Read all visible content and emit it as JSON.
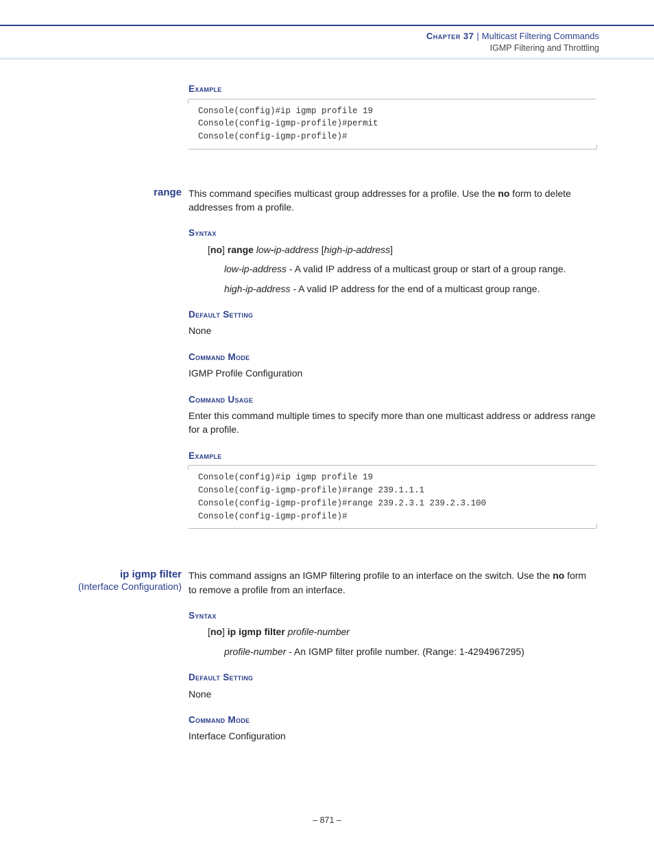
{
  "colors": {
    "accent": "#2a3e8a",
    "rule": "#b8b8b8",
    "header_bar": "#dbeaf5",
    "text": "#222222",
    "code_text": "#333333"
  },
  "typography": {
    "body_font": "Verdana",
    "body_size_pt": 10.5,
    "code_font": "Courier New",
    "code_size_pt": 9.5
  },
  "header": {
    "chapter_label": "Chapter 37",
    "pipe": "|",
    "section": "Multicast Filtering Commands",
    "subsection": "IGMP Filtering and Throttling"
  },
  "section1": {
    "example_head": "Example",
    "example_code": "Console(config)#ip igmp profile 19\nConsole(config-igmp-profile)#permit\nConsole(config-igmp-profile)#"
  },
  "range": {
    "name": "range",
    "desc_pre": "This command specifies multicast group addresses for a profile. Use the ",
    "desc_bold": "no",
    "desc_post": " form to delete addresses from a profile.",
    "syntax_head": "Syntax",
    "syntax_open": "[",
    "syntax_no": "no",
    "syntax_close_space": "] ",
    "syntax_cmd": "range",
    "syntax_space": " ",
    "syntax_low": "low",
    "syntax_dash": "-",
    "syntax_lowrest": "ip-address",
    "syntax_space2": " [",
    "syntax_high": "high-ip-address",
    "syntax_close2": "]",
    "param_low_name": "low-ip-address",
    "param_low_desc": " - A valid IP address of a multicast group or start of a group range.",
    "param_high_name": "high-ip-address",
    "param_high_desc": " - A valid IP address for the end of a multicast group range.",
    "default_head": "Default Setting",
    "default_val": "None",
    "mode_head": "Command Mode",
    "mode_val": "IGMP Profile Configuration",
    "usage_head": "Command Usage",
    "usage_val": "Enter this command multiple times to specify more than one multicast address or address range for a profile.",
    "example_head": "Example",
    "example_code": "Console(config)#ip igmp profile 19\nConsole(config-igmp-profile)#range 239.1.1.1\nConsole(config-igmp-profile)#range 239.2.3.1 239.2.3.100\nConsole(config-igmp-profile)#"
  },
  "filter": {
    "name": "ip igmp filter",
    "name_sub": "(Interface Configuration)",
    "desc_pre": "This command assigns an IGMP filtering profile to an interface on the switch. Use the ",
    "desc_bold": "no",
    "desc_post": " form to remove a profile from an interface.",
    "syntax_head": "Syntax",
    "syntax_open": "[",
    "syntax_no": "no",
    "syntax_close_space": "] ",
    "syntax_cmd": "ip igmp filter",
    "syntax_space": " ",
    "syntax_arg": "profile-number",
    "param_name": "profile-number",
    "param_desc": " - An IGMP filter profile number. (Range: 1-4294967295)",
    "default_head": "Default Setting",
    "default_val": "None",
    "mode_head": "Command Mode",
    "mode_val": "Interface Configuration"
  },
  "footer": {
    "text": "–  871  –"
  }
}
